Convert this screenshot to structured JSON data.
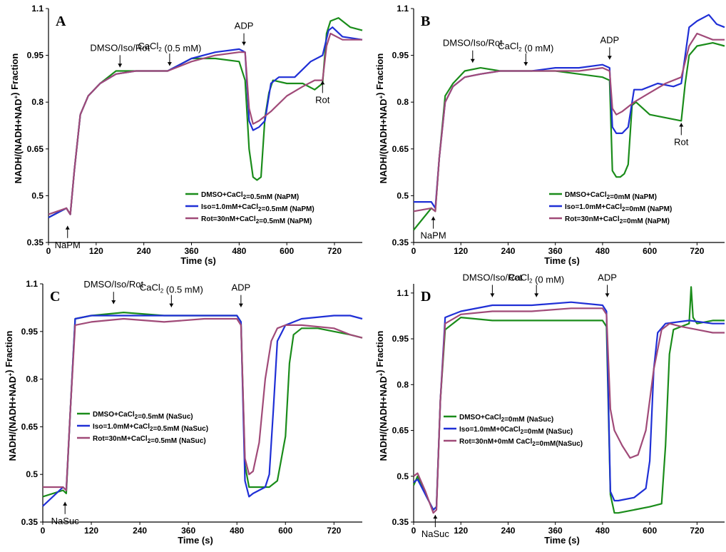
{
  "colors": {
    "green": "#1a8c1a",
    "blue": "#1f2fd6",
    "purple": "#a04a78"
  },
  "chart_data": [
    {
      "panel": "A",
      "type": "line",
      "xlabel": "Time (s)",
      "ylabel": "NADH/(NADH+NAD⁺) Fraction",
      "xticks": [
        0,
        120,
        240,
        360,
        480,
        600,
        720
      ],
      "xlim": [
        0,
        790
      ],
      "yticks": [
        0.35,
        0.5,
        0.65,
        0.8,
        0.95,
        1.1
      ],
      "ylim": [
        0.35,
        1.1
      ],
      "annotations": [
        {
          "text": "DMSO/Iso/Rot",
          "x": 180,
          "y": 0.905,
          "pos": "above"
        },
        {
          "text": "CaCl₂ (0.5 mM)",
          "x": 305,
          "y": 0.91,
          "pos": "above"
        },
        {
          "text": "ADP",
          "x": 492,
          "y": 0.975,
          "pos": "above"
        },
        {
          "text": "Rot",
          "x": 690,
          "y": 0.875,
          "pos": "below"
        },
        {
          "text": "NaPM",
          "x": 48,
          "y": 0.41,
          "pos": "below"
        }
      ],
      "legend": [
        {
          "label": "DMSO+CaCl₂=0.5mM (NaPM)",
          "color": "green"
        },
        {
          "label": "Iso=1.0mM+CaCl₂=0.5mM (NaPM)",
          "color": "blue"
        },
        {
          "label": "Rot=30nM+CaCl₂=0.5mM (NaPM)",
          "color": "purple"
        }
      ],
      "series": [
        {
          "name": "DMSO+CaCl₂=0.5mM (NaPM)",
          "color": "green",
          "x": [
            0,
            45,
            55,
            65,
            80,
            100,
            130,
            170,
            220,
            300,
            360,
            420,
            480,
            495,
            505,
            515,
            525,
            535,
            545,
            555,
            565,
            600,
            640,
            670,
            690,
            700,
            710,
            730,
            760,
            790
          ],
          "y": [
            0.43,
            0.46,
            0.44,
            0.58,
            0.76,
            0.82,
            0.86,
            0.9,
            0.9,
            0.9,
            0.94,
            0.94,
            0.93,
            0.87,
            0.65,
            0.56,
            0.55,
            0.56,
            0.75,
            0.83,
            0.87,
            0.86,
            0.86,
            0.84,
            0.86,
            1.02,
            1.06,
            1.07,
            1.04,
            1.03
          ]
        },
        {
          "name": "Iso=1.0mM+CaCl₂=0.5mM (NaPM)",
          "color": "blue",
          "x": [
            0,
            45,
            55,
            65,
            80,
            100,
            130,
            170,
            220,
            300,
            360,
            420,
            480,
            495,
            505,
            515,
            530,
            545,
            560,
            580,
            620,
            660,
            690,
            705,
            715,
            740,
            790
          ],
          "y": [
            0.43,
            0.46,
            0.44,
            0.58,
            0.76,
            0.82,
            0.86,
            0.89,
            0.9,
            0.9,
            0.94,
            0.96,
            0.97,
            0.96,
            0.74,
            0.71,
            0.72,
            0.74,
            0.86,
            0.88,
            0.88,
            0.93,
            0.95,
            1.03,
            1.04,
            1.01,
            1.0
          ]
        },
        {
          "name": "Rot=30nM+CaCl₂=0.5mM (NaPM)",
          "color": "purple",
          "x": [
            0,
            45,
            55,
            65,
            80,
            100,
            130,
            170,
            220,
            300,
            360,
            420,
            480,
            495,
            505,
            515,
            530,
            560,
            600,
            640,
            670,
            690,
            700,
            710,
            740,
            790
          ],
          "y": [
            0.44,
            0.46,
            0.44,
            0.58,
            0.76,
            0.82,
            0.86,
            0.89,
            0.9,
            0.9,
            0.93,
            0.95,
            0.96,
            0.96,
            0.78,
            0.73,
            0.74,
            0.77,
            0.82,
            0.85,
            0.87,
            0.87,
            0.98,
            1.02,
            1.0,
            1.0
          ]
        }
      ]
    },
    {
      "panel": "B",
      "type": "line",
      "xlabel": "Time (s)",
      "ylabel": "NADH/(NADH+NAD⁺) Fraction",
      "xticks": [
        0,
        120,
        240,
        360,
        480,
        600,
        720
      ],
      "xlim": [
        0,
        790
      ],
      "yticks": [
        0.35,
        0.5,
        0.65,
        0.8,
        0.95,
        1.1
      ],
      "ylim": [
        0.35,
        1.1
      ],
      "annotations": [
        {
          "text": "DMSO/Iso/Rot",
          "x": 150,
          "y": 0.92,
          "pos": "above"
        },
        {
          "text": "CaCl₂ (0 mM)",
          "x": 285,
          "y": 0.91,
          "pos": "above"
        },
        {
          "text": "ADP",
          "x": 498,
          "y": 0.93,
          "pos": "above"
        },
        {
          "text": "Rot",
          "x": 680,
          "y": 0.74,
          "pos": "below"
        },
        {
          "text": "NaPM",
          "x": 50,
          "y": 0.44,
          "pos": "below"
        }
      ],
      "legend": [
        {
          "label": "DMSO+CaCl₂=0mM (NaPM)",
          "color": "green"
        },
        {
          "label": "Iso=1.0mM+CaCl₂=0mM (NaPM)",
          "color": "blue"
        },
        {
          "label": "Rot=30nM+CaCl₂=0mM (NaPM)",
          "color": "purple"
        }
      ],
      "series": [
        {
          "name": "DMSO+CaCl₂=0mM (NaPM)",
          "color": "green",
          "x": [
            0,
            45,
            55,
            65,
            80,
            100,
            130,
            170,
            220,
            300,
            360,
            420,
            480,
            498,
            505,
            515,
            525,
            535,
            545,
            555,
            565,
            600,
            640,
            680,
            690,
            700,
            720,
            760,
            790
          ],
          "y": [
            0.39,
            0.46,
            0.45,
            0.62,
            0.82,
            0.86,
            0.9,
            0.91,
            0.9,
            0.9,
            0.9,
            0.89,
            0.88,
            0.87,
            0.58,
            0.56,
            0.56,
            0.57,
            0.6,
            0.79,
            0.8,
            0.76,
            0.75,
            0.74,
            0.86,
            0.95,
            0.98,
            0.99,
            0.98
          ]
        },
        {
          "name": "Iso=1.0mM+CaCl₂=0mM (NaPM)",
          "color": "blue",
          "x": [
            0,
            45,
            55,
            65,
            80,
            100,
            130,
            170,
            220,
            300,
            360,
            420,
            480,
            498,
            505,
            515,
            530,
            545,
            560,
            580,
            620,
            660,
            680,
            690,
            700,
            720,
            750,
            770,
            790
          ],
          "y": [
            0.48,
            0.48,
            0.46,
            0.62,
            0.8,
            0.85,
            0.88,
            0.89,
            0.9,
            0.9,
            0.91,
            0.91,
            0.92,
            0.91,
            0.72,
            0.7,
            0.7,
            0.72,
            0.84,
            0.84,
            0.86,
            0.85,
            0.86,
            0.95,
            1.04,
            1.06,
            1.08,
            1.05,
            1.04
          ]
        },
        {
          "name": "Rot=30nM+CaCl₂=0mM (NaPM)",
          "color": "purple",
          "x": [
            0,
            45,
            55,
            65,
            80,
            100,
            130,
            170,
            220,
            300,
            360,
            420,
            480,
            498,
            505,
            515,
            530,
            560,
            600,
            640,
            680,
            700,
            720,
            760,
            790
          ],
          "y": [
            0.45,
            0.46,
            0.45,
            0.62,
            0.8,
            0.85,
            0.88,
            0.89,
            0.9,
            0.9,
            0.9,
            0.9,
            0.91,
            0.9,
            0.78,
            0.76,
            0.77,
            0.8,
            0.83,
            0.86,
            0.88,
            0.98,
            1.02,
            1.0,
            1.0
          ]
        }
      ]
    },
    {
      "panel": "C",
      "type": "line",
      "xlabel": "Time (s)",
      "ylabel": "NADH/(NADH+NAD⁺) Fraction",
      "xticks": [
        0,
        120,
        240,
        360,
        480,
        600,
        720
      ],
      "xlim": [
        0,
        790
      ],
      "yticks": [
        0.35,
        0.5,
        0.65,
        0.8,
        0.95,
        1.1
      ],
      "ylim": [
        0.35,
        1.1
      ],
      "annotations": [
        {
          "text": "DMSO/Iso/Rot",
          "x": 175,
          "y": 1.03,
          "pos": "above"
        },
        {
          "text": "CaCl₂ (0.5 mM)",
          "x": 318,
          "y": 1.02,
          "pos": "above"
        },
        {
          "text": "ADP",
          "x": 490,
          "y": 1.02,
          "pos": "above"
        },
        {
          "text": "NaSuc",
          "x": 55,
          "y": 0.42,
          "pos": "below"
        }
      ],
      "legend": [
        {
          "label": "DMSO+CaCl₂=0.5mM (NaSuc)",
          "color": "green"
        },
        {
          "label": "Iso=1.0mM+CaCl₂=0.5mM (NaSuc)",
          "color": "blue"
        },
        {
          "label": "Rot=30nM+CaCl₂=0.5mM (NaSuc)",
          "color": "purple"
        }
      ],
      "series": [
        {
          "name": "DMSO+CaCl₂=0.5mM (NaSuc)",
          "color": "green",
          "x": [
            0,
            50,
            58,
            68,
            80,
            120,
            200,
            300,
            400,
            480,
            490,
            500,
            510,
            520,
            560,
            580,
            600,
            610,
            620,
            640,
            680,
            720,
            760,
            790
          ],
          "y": [
            0.43,
            0.45,
            0.44,
            0.7,
            0.99,
            1.0,
            1.01,
            1.0,
            1.0,
            1.0,
            0.98,
            0.53,
            0.46,
            0.46,
            0.46,
            0.48,
            0.62,
            0.85,
            0.94,
            0.96,
            0.96,
            0.95,
            0.94,
            0.93
          ]
        },
        {
          "name": "Iso=1.0mM+CaCl₂=0.5mM (NaSuc)",
          "color": "blue",
          "x": [
            0,
            50,
            58,
            68,
            80,
            120,
            200,
            300,
            400,
            480,
            490,
            500,
            510,
            520,
            550,
            560,
            570,
            580,
            600,
            640,
            720,
            760,
            790
          ],
          "y": [
            0.4,
            0.46,
            0.45,
            0.7,
            0.99,
            1.0,
            1.0,
            1.0,
            1.0,
            1.0,
            0.98,
            0.48,
            0.43,
            0.44,
            0.46,
            0.5,
            0.7,
            0.92,
            0.97,
            0.99,
            1.0,
            1.0,
            0.99
          ]
        },
        {
          "name": "Rot=30nM+CaCl₂=0.5mM (NaSuc)",
          "color": "purple",
          "x": [
            0,
            50,
            58,
            68,
            80,
            120,
            200,
            300,
            400,
            480,
            490,
            500,
            510,
            520,
            535,
            550,
            565,
            580,
            600,
            640,
            720,
            760,
            790
          ],
          "y": [
            0.46,
            0.46,
            0.45,
            0.7,
            0.97,
            0.98,
            0.99,
            0.98,
            0.99,
            0.99,
            0.97,
            0.55,
            0.5,
            0.51,
            0.6,
            0.8,
            0.92,
            0.96,
            0.97,
            0.97,
            0.96,
            0.94,
            0.93
          ]
        }
      ]
    },
    {
      "panel": "D",
      "type": "line",
      "xlabel": "Time (s)",
      "ylabel": "NADH/(NADH+NAD⁺) Fraction",
      "xticks": [
        0,
        120,
        240,
        360,
        480,
        600,
        720
      ],
      "xlim": [
        0,
        790
      ],
      "yticks": [
        0.35,
        0.5,
        0.65,
        0.8,
        0.95,
        1.1
      ],
      "ylim": [
        0.35,
        1.13
      ],
      "annotations": [
        {
          "text": "DMSO/Iso/Rot",
          "x": 200,
          "y": 1.08,
          "pos": "above"
        },
        {
          "text": "CaCl₂ (0 mM)",
          "x": 312,
          "y": 1.08,
          "pos": "above"
        },
        {
          "text": "ADP",
          "x": 492,
          "y": 1.08,
          "pos": "above"
        },
        {
          "text": "NaSuc",
          "x": 55,
          "y": 0.38,
          "pos": "below"
        }
      ],
      "legend": [
        {
          "label": "DMSO+CaCl₂=0mM (NaSuc)",
          "color": "green"
        },
        {
          "label": "Iso=1.0mM+0CaCl₂=0mM (NaSuc)",
          "color": "blue"
        },
        {
          "label": "Rot=30nM+0mM CaCl₂=0mM(NaSuc)",
          "color": "purple"
        }
      ],
      "series": [
        {
          "name": "DMSO+CaCl₂=0mM (NaSuc)",
          "color": "green",
          "x": [
            0,
            10,
            30,
            50,
            58,
            68,
            80,
            120,
            200,
            300,
            400,
            480,
            490,
            500,
            510,
            520,
            560,
            600,
            630,
            640,
            650,
            660,
            680,
            700,
            705,
            710,
            720,
            760,
            790
          ],
          "y": [
            0.47,
            0.5,
            0.44,
            0.39,
            0.4,
            0.75,
            0.98,
            1.02,
            1.01,
            1.01,
            1.01,
            1.01,
            0.99,
            0.44,
            0.38,
            0.38,
            0.39,
            0.4,
            0.41,
            0.6,
            0.9,
            0.98,
            0.99,
            1.0,
            1.12,
            1.02,
            1.0,
            1.01,
            1.01
          ]
        },
        {
          "name": "Iso=1.0mM+0CaCl₂=0mM (NaSuc)",
          "color": "blue",
          "x": [
            0,
            10,
            30,
            50,
            58,
            68,
            80,
            120,
            200,
            300,
            400,
            480,
            490,
            500,
            510,
            520,
            560,
            590,
            600,
            610,
            620,
            640,
            700,
            760,
            790
          ],
          "y": [
            0.48,
            0.49,
            0.44,
            0.39,
            0.4,
            0.75,
            1.02,
            1.04,
            1.06,
            1.06,
            1.07,
            1.06,
            1.04,
            0.45,
            0.42,
            0.42,
            0.43,
            0.46,
            0.55,
            0.85,
            0.97,
            1.0,
            1.01,
            1.0,
            1.0
          ]
        },
        {
          "name": "Rot=30nM+0mM CaCl₂=0mM(NaSuc)",
          "color": "purple",
          "x": [
            0,
            10,
            30,
            50,
            58,
            68,
            80,
            120,
            200,
            300,
            400,
            480,
            490,
            500,
            510,
            530,
            550,
            570,
            590,
            610,
            630,
            650,
            680,
            720,
            760,
            790
          ],
          "y": [
            0.5,
            0.51,
            0.45,
            0.38,
            0.39,
            0.75,
            1.0,
            1.03,
            1.04,
            1.04,
            1.05,
            1.05,
            1.03,
            0.72,
            0.65,
            0.6,
            0.56,
            0.57,
            0.65,
            0.85,
            0.98,
            1.0,
            0.99,
            0.98,
            0.97,
            0.97
          ]
        }
      ]
    }
  ]
}
